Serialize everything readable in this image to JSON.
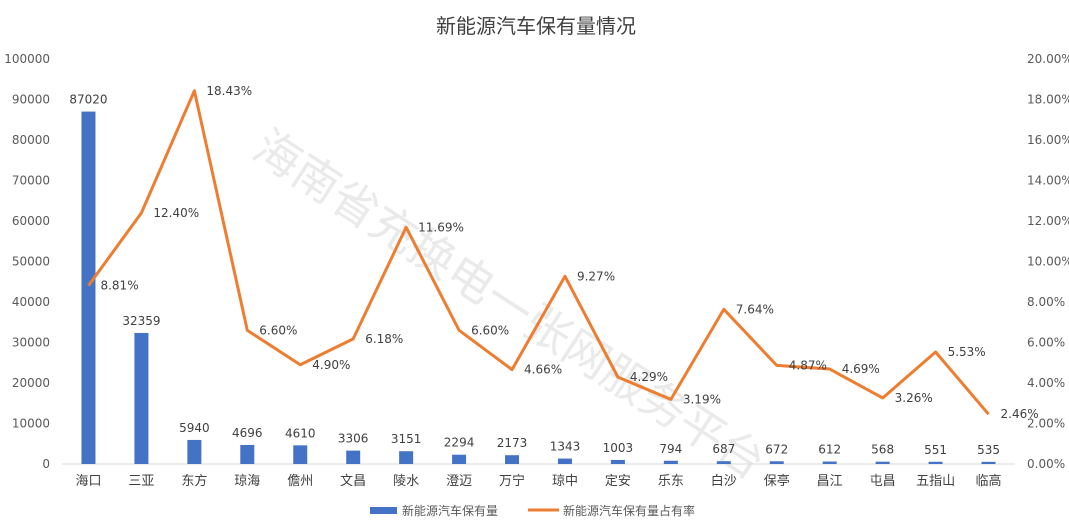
{
  "chart_data": {
    "type": "bar+line",
    "title": "新能源汽车保有量情况",
    "watermark": "海南省充换电一张网服务平台",
    "categories": [
      "海口",
      "三亚",
      "东方",
      "琼海",
      "儋州",
      "文昌",
      "陵水",
      "澄迈",
      "万宁",
      "琼中",
      "定安",
      "乐东",
      "白沙",
      "保亭",
      "昌江",
      "屯昌",
      "五指山",
      "临高"
    ],
    "series": [
      {
        "name": "新能源汽车保有量",
        "type": "bar",
        "axis": "left",
        "color": "#4472c4",
        "values": [
          87020,
          32359,
          5940,
          4696,
          4610,
          3306,
          3151,
          2294,
          2173,
          1343,
          1003,
          794,
          687,
          672,
          612,
          568,
          551,
          535
        ],
        "labels": [
          "87020",
          "32359",
          "5940",
          "4696",
          "4610",
          "3306",
          "3151",
          "2294",
          "2173",
          "1343",
          "1003",
          "794",
          "687",
          "672",
          "612",
          "568",
          "551",
          "535"
        ]
      },
      {
        "name": "新能源汽车保有量占有率",
        "type": "line",
        "axis": "right",
        "color": "#ed7d31",
        "values": [
          8.81,
          12.4,
          18.43,
          6.6,
          4.9,
          6.18,
          11.69,
          6.6,
          4.66,
          9.27,
          4.29,
          3.19,
          7.64,
          4.87,
          4.69,
          3.26,
          5.53,
          2.46
        ],
        "labels": [
          "8.81%",
          "12.40%",
          "18.43%",
          "6.60%",
          "4.90%",
          "6.18%",
          "11.69%",
          "6.60%",
          "4.66%",
          "9.27%",
          "4.29%",
          "3.19%",
          "7.64%",
          "4.87%",
          "4.69%",
          "3.26%",
          "5.53%",
          "2.46%"
        ]
      }
    ],
    "y_left": {
      "ylim": [
        0,
        100000
      ],
      "ticks": [
        0,
        10000,
        20000,
        30000,
        40000,
        50000,
        60000,
        70000,
        80000,
        90000,
        100000
      ],
      "tick_labels": [
        "0",
        "10000",
        "20000",
        "30000",
        "40000",
        "50000",
        "60000",
        "70000",
        "80000",
        "90000",
        "100000"
      ]
    },
    "y_right": {
      "ylim": [
        0,
        20
      ],
      "ticks": [
        0,
        2,
        4,
        6,
        8,
        10,
        12,
        14,
        16,
        18,
        20
      ],
      "tick_labels": [
        "0.00%",
        "2.00%",
        "4.00%",
        "6.00%",
        "8.00%",
        "10.00%",
        "12.00%",
        "14.00%",
        "16.00%",
        "18.00%",
        "20.00%"
      ]
    },
    "grid": false,
    "legend_position": "bottom"
  }
}
